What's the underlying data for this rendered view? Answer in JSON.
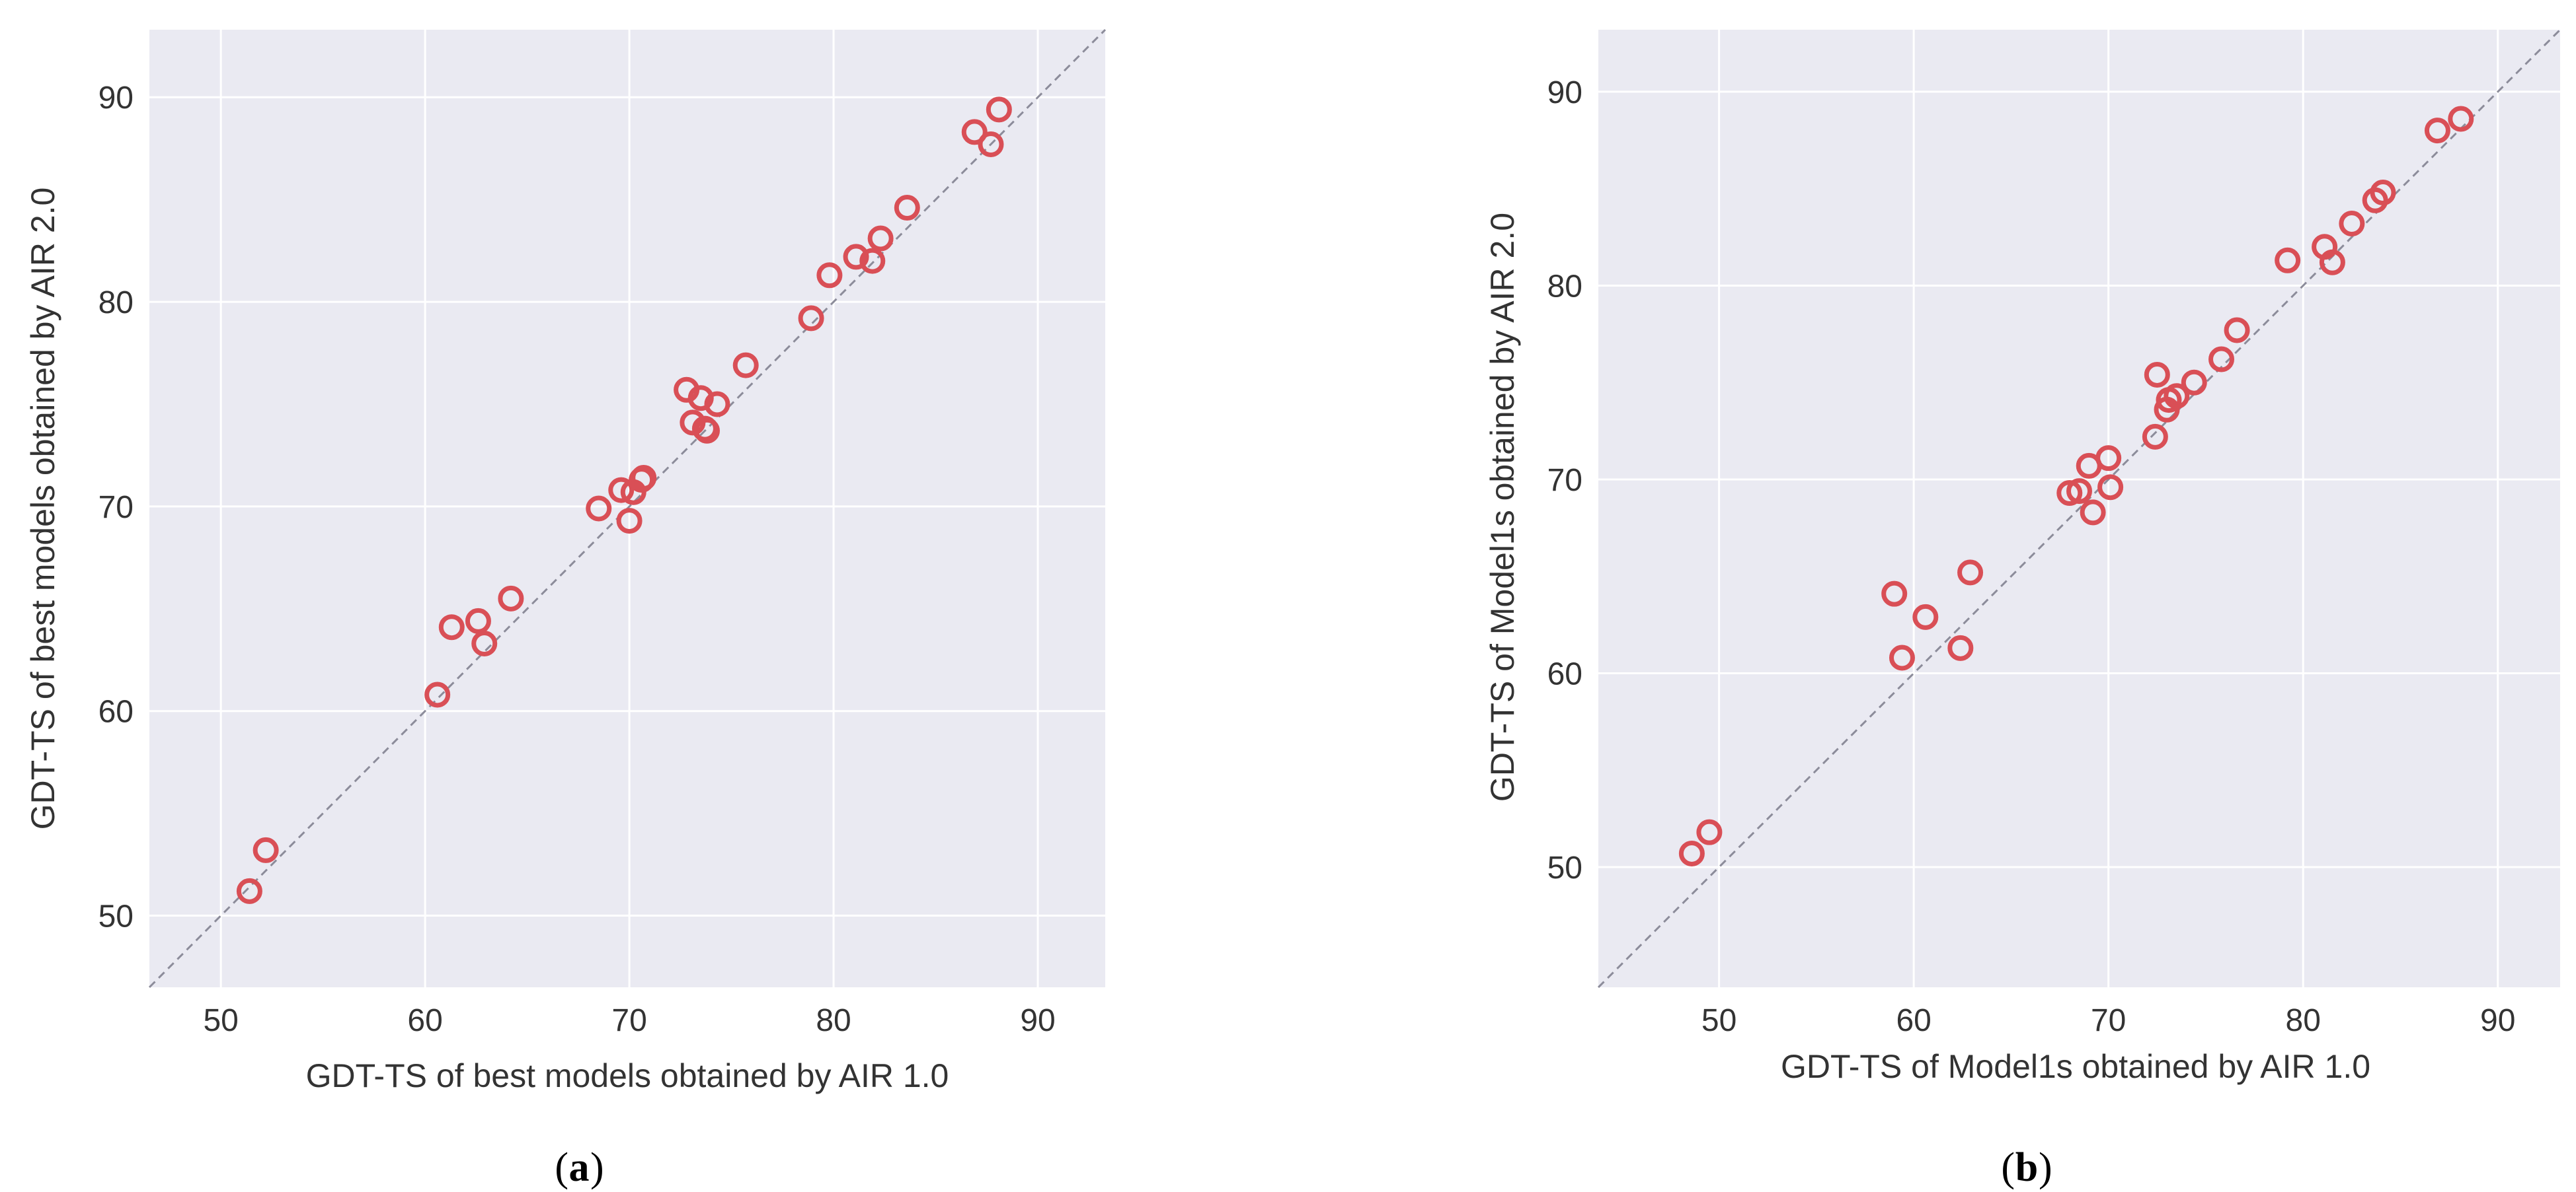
{
  "colors": {
    "plot_background": "#eaeaf2",
    "grid": "#ffffff",
    "marker": "#d94f56",
    "diagonal": "#8c8c9a"
  },
  "chart_data": [
    {
      "type": "scatter",
      "panel_label": "a",
      "xlabel": "GDT-TS of best models obtained by AIR 1.0",
      "ylabel": "GDT-TS of best models obtained by AIR 2.0",
      "xlim": [
        46.5,
        93.3
      ],
      "ylim": [
        46.5,
        93.3
      ],
      "xticks": [
        50,
        60,
        70,
        80,
        90
      ],
      "yticks": [
        50,
        60,
        70,
        80,
        90
      ],
      "xtick_labels": [
        "50",
        "60",
        "70",
        "80",
        "90"
      ],
      "ytick_labels": [
        "50",
        "60",
        "70",
        "80",
        "90"
      ],
      "grid": true,
      "reference_line": "y = x",
      "points": [
        [
          51.4,
          51.2
        ],
        [
          52.2,
          53.2
        ],
        [
          60.6,
          60.8
        ],
        [
          61.3,
          64.1
        ],
        [
          62.6,
          64.4
        ],
        [
          62.9,
          63.3
        ],
        [
          64.2,
          65.5
        ],
        [
          68.5,
          69.9
        ],
        [
          69.6,
          70.8
        ],
        [
          70.0,
          69.3
        ],
        [
          70.2,
          70.7
        ],
        [
          70.6,
          71.3
        ],
        [
          70.7,
          71.4
        ],
        [
          72.8,
          75.7
        ],
        [
          73.1,
          74.1
        ],
        [
          73.5,
          75.3
        ],
        [
          73.7,
          73.8
        ],
        [
          73.8,
          73.7
        ],
        [
          74.3,
          75.0
        ],
        [
          75.7,
          76.9
        ],
        [
          78.9,
          79.2
        ],
        [
          79.8,
          81.3
        ],
        [
          81.1,
          82.2
        ],
        [
          81.9,
          82.0
        ],
        [
          82.3,
          83.1
        ],
        [
          83.6,
          84.6
        ],
        [
          86.9,
          88.3
        ],
        [
          87.7,
          87.7
        ],
        [
          88.1,
          89.4
        ]
      ]
    },
    {
      "type": "scatter",
      "panel_label": "b",
      "xlabel": "GDT-TS of Model1s obtained by AIR 1.0",
      "ylabel": "GDT-TS of Model1s obtained by AIR 2.0",
      "xlim": [
        43.8,
        93.2
      ],
      "ylim": [
        43.8,
        93.2
      ],
      "xticks": [
        50,
        60,
        70,
        80,
        90
      ],
      "yticks": [
        50,
        60,
        70,
        80,
        90
      ],
      "xtick_labels": [
        "50",
        "60",
        "70",
        "80",
        "90"
      ],
      "ytick_labels": [
        "50",
        "60",
        "70",
        "80",
        "90"
      ],
      "grid": true,
      "reference_line": "y = x",
      "points": [
        [
          48.6,
          50.7
        ],
        [
          49.5,
          51.8
        ],
        [
          59.0,
          64.1
        ],
        [
          59.4,
          60.8
        ],
        [
          60.6,
          62.9
        ],
        [
          62.4,
          61.3
        ],
        [
          62.9,
          65.2
        ],
        [
          68.0,
          69.3
        ],
        [
          68.5,
          69.4
        ],
        [
          69.0,
          70.7
        ],
        [
          69.2,
          68.3
        ],
        [
          70.0,
          71.1
        ],
        [
          70.1,
          69.6
        ],
        [
          72.4,
          72.2
        ],
        [
          72.5,
          75.4
        ],
        [
          73.0,
          73.6
        ],
        [
          73.1,
          74.1
        ],
        [
          73.5,
          74.3
        ],
        [
          74.4,
          75.0
        ],
        [
          75.8,
          76.2
        ],
        [
          76.6,
          77.7
        ],
        [
          79.2,
          81.3
        ],
        [
          81.1,
          82.0
        ],
        [
          81.5,
          81.2
        ],
        [
          82.5,
          83.2
        ],
        [
          83.7,
          84.4
        ],
        [
          84.1,
          84.8
        ],
        [
          86.9,
          88.0
        ],
        [
          88.1,
          88.6
        ]
      ]
    }
  ]
}
